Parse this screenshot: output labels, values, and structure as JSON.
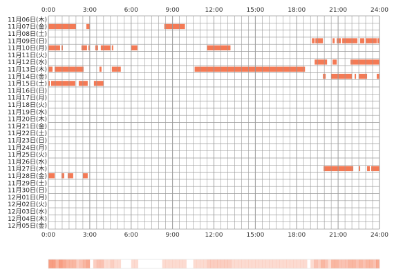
{
  "chart_data": {
    "type": "timeline",
    "title": "",
    "xlabel": "",
    "ylabel": "",
    "x_unit": "hour of day",
    "xlim": [
      0,
      24
    ],
    "x_ticks": [
      "0:00",
      "3:00",
      "6:00",
      "9:00",
      "12:00",
      "15:00",
      "18:00",
      "21:00",
      "24:00"
    ],
    "grid": true,
    "bar_color": "#f47a55",
    "grid_color": "#9a9a9a",
    "rows": [
      {
        "label": "11月06日(木)",
        "intervals": []
      },
      {
        "label": "11月07日(金)",
        "intervals": [
          [
            0.0,
            2.0
          ],
          [
            2.75,
            3.0
          ],
          [
            8.4,
            9.9
          ]
        ]
      },
      {
        "label": "11月08日(土)",
        "intervals": []
      },
      {
        "label": "11月09日(日)",
        "intervals": [
          [
            19.1,
            19.3
          ],
          [
            19.35,
            19.9
          ],
          [
            20.6,
            20.75
          ],
          [
            20.9,
            21.2
          ],
          [
            21.3,
            22.4
          ],
          [
            22.6,
            22.9
          ],
          [
            23.0,
            23.8
          ],
          [
            23.85,
            24.0
          ]
        ]
      },
      {
        "label": "11月10日(月)",
        "intervals": [
          [
            0.0,
            0.85
          ],
          [
            0.95,
            1.05
          ],
          [
            2.4,
            2.8
          ],
          [
            2.9,
            3.0
          ],
          [
            3.4,
            3.6
          ],
          [
            3.8,
            4.5
          ],
          [
            4.6,
            4.7
          ],
          [
            6.0,
            6.45
          ],
          [
            11.5,
            13.2
          ]
        ]
      },
      {
        "label": "11月11日(火)",
        "intervals": []
      },
      {
        "label": "11月12日(水)",
        "intervals": [
          [
            19.3,
            20.2
          ],
          [
            20.6,
            20.9
          ],
          [
            21.9,
            24.0
          ]
        ]
      },
      {
        "label": "11月13日(木)",
        "intervals": [
          [
            0.0,
            0.3
          ],
          [
            0.45,
            2.55
          ],
          [
            3.7,
            3.85
          ],
          [
            4.6,
            5.25
          ],
          [
            10.6,
            18.6
          ]
        ]
      },
      {
        "label": "11月14日(金)",
        "intervals": [
          [
            19.9,
            20.1
          ],
          [
            20.5,
            22.0
          ],
          [
            22.2,
            22.3
          ],
          [
            22.5,
            23.1
          ],
          [
            23.8,
            24.0
          ]
        ]
      },
      {
        "label": "11月15日(土)",
        "intervals": [
          [
            0.0,
            0.1
          ],
          [
            0.2,
            1.95
          ],
          [
            2.2,
            2.85
          ],
          [
            3.3,
            4.0
          ]
        ]
      },
      {
        "label": "11月16日(日)",
        "intervals": []
      },
      {
        "label": "11月17日(月)",
        "intervals": []
      },
      {
        "label": "11月18日(火)",
        "intervals": []
      },
      {
        "label": "11月19日(水)",
        "intervals": []
      },
      {
        "label": "11月20日(木)",
        "intervals": []
      },
      {
        "label": "11月21日(金)",
        "intervals": []
      },
      {
        "label": "11月22日(土)",
        "intervals": []
      },
      {
        "label": "11月23日(日)",
        "intervals": []
      },
      {
        "label": "11月24日(月)",
        "intervals": []
      },
      {
        "label": "11月25日(火)",
        "intervals": []
      },
      {
        "label": "11月26日(水)",
        "intervals": []
      },
      {
        "label": "11月27日(木)",
        "intervals": [
          [
            19.95,
            22.1
          ],
          [
            22.5,
            22.6
          ],
          [
            23.1,
            23.3
          ],
          [
            23.4,
            24.0
          ]
        ]
      },
      {
        "label": "11月28日(金)",
        "intervals": [
          [
            0.0,
            0.45
          ],
          [
            0.95,
            1.15
          ],
          [
            1.4,
            1.8
          ],
          [
            2.5,
            2.85
          ]
        ]
      },
      {
        "label": "11月29日(土)",
        "intervals": []
      },
      {
        "label": "11月30日(日)",
        "intervals": []
      },
      {
        "label": "12月01日(月)",
        "intervals": []
      },
      {
        "label": "12月02日(火)",
        "intervals": []
      },
      {
        "label": "12月03日(水)",
        "intervals": []
      },
      {
        "label": "12月04日(木)",
        "intervals": []
      },
      {
        "label": "12月05日(金)",
        "intervals": []
      }
    ]
  }
}
